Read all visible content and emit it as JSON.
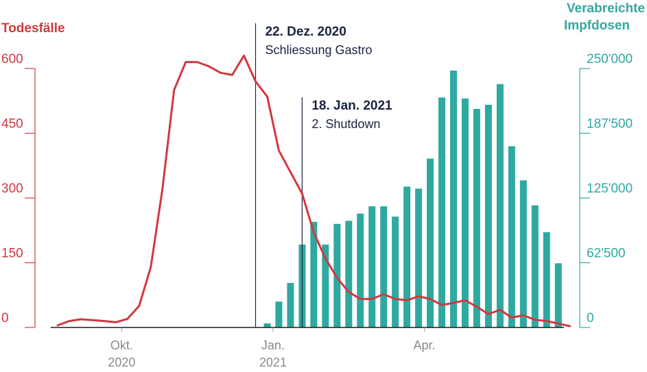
{
  "colors": {
    "deaths": "#d1383e",
    "doses": "#2fa9a0",
    "text": "#1a2440",
    "axis": "#1a1a1a",
    "tick": "#9a9a9a"
  },
  "chart_data": {
    "type": "bar+line",
    "left_axis": {
      "title": "Todesfälle",
      "ticks": [
        "0",
        "150",
        "300",
        "450",
        "600"
      ],
      "range": [
        0,
        600
      ]
    },
    "right_axis": {
      "title_line1": "Verabreichte",
      "title_line2": "Impfdosen",
      "ticks": [
        "0",
        "62'500",
        "125'000",
        "187'500",
        "250'000"
      ],
      "range": [
        0,
        250000
      ]
    },
    "x_labels": [
      {
        "line1": "Okt.",
        "line2": "2020",
        "week": 5.5
      },
      {
        "line1": "Jan.",
        "line2": "2021",
        "week": 18.5
      },
      {
        "line1": "Apr.",
        "line2": "",
        "week": 31.5
      }
    ],
    "annotations": [
      {
        "title": "22. Dez. 2020",
        "text": "Schliessung Gastro",
        "week": 17
      },
      {
        "title": "18. Jan. 2021",
        "text": "2. Shutdown",
        "week": 21
      }
    ],
    "series": [
      {
        "name": "Todesfälle",
        "type": "line",
        "axis": "left",
        "x": [
          0,
          1,
          2,
          3,
          4,
          5,
          6,
          7,
          8,
          9,
          10,
          11,
          12,
          13,
          14,
          15,
          16,
          17,
          18,
          19,
          20,
          21,
          22,
          23,
          24,
          25,
          26,
          27,
          28,
          29,
          30,
          31,
          32,
          33,
          34,
          35,
          36,
          37,
          38,
          39,
          40,
          41,
          42,
          43,
          44
        ],
        "values": [
          5,
          15,
          19,
          17,
          15,
          12,
          20,
          50,
          140,
          320,
          550,
          615,
          615,
          605,
          590,
          585,
          630,
          570,
          535,
          410,
          360,
          310,
          220,
          160,
          115,
          82,
          66,
          66,
          77,
          66,
          63,
          72,
          66,
          52,
          57,
          63,
          48,
          31,
          41,
          23,
          28,
          18,
          15,
          9,
          3
        ]
      },
      {
        "name": "Verabreichte Impfdosen",
        "type": "bar",
        "axis": "right",
        "x": [
          18,
          19,
          20,
          21,
          22,
          23,
          24,
          25,
          26,
          27,
          28,
          29,
          30,
          31,
          32,
          33,
          34,
          35,
          36,
          37,
          38,
          39,
          40,
          41,
          42,
          43,
          44
        ],
        "values": [
          4000,
          25000,
          43000,
          80000,
          102000,
          80000,
          100000,
          103000,
          110000,
          117000,
          117000,
          107000,
          136000,
          134000,
          163000,
          222000,
          248000,
          221000,
          211000,
          215000,
          235000,
          175000,
          142000,
          118000,
          92000,
          62000,
          0
        ]
      }
    ]
  }
}
